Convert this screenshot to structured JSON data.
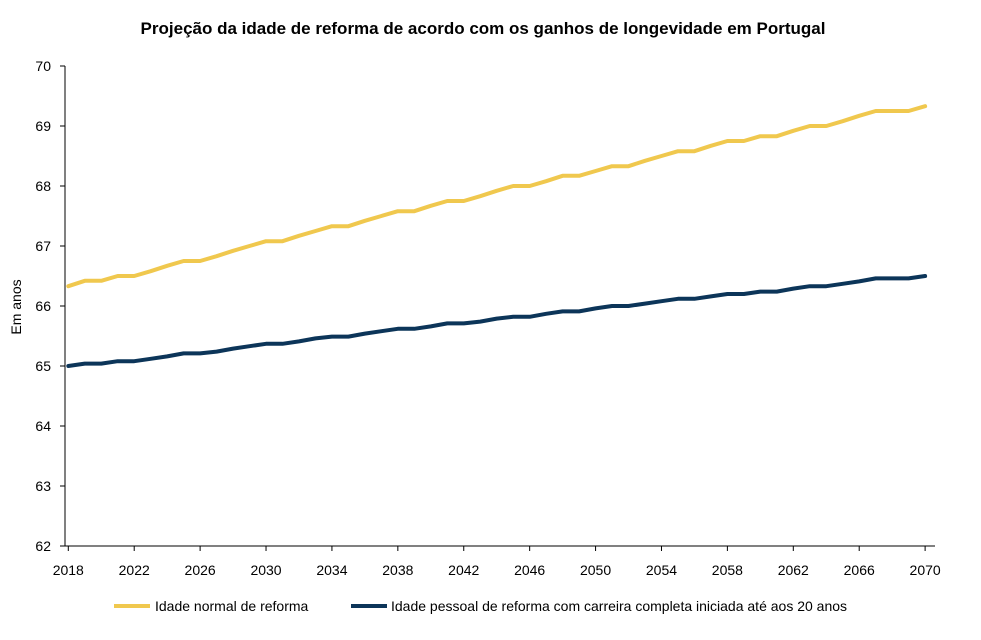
{
  "chart_data": {
    "type": "line",
    "title": "Projeção da idade de reforma de acordo com os ganhos de longevidade em Portugal",
    "xlabel": "",
    "ylabel": "Em anos",
    "ylim": [
      62,
      70
    ],
    "yticks": [
      "62",
      "63",
      "64",
      "65",
      "66",
      "67",
      "68",
      "69",
      "70"
    ],
    "xlim": [
      2017.8,
      2070.6
    ],
    "xticks": [
      "2018",
      "2022",
      "2026",
      "2030",
      "2034",
      "2038",
      "2042",
      "2046",
      "2050",
      "2054",
      "2058",
      "2062",
      "2066",
      "2070"
    ],
    "grid": false,
    "legend_position": "bottom",
    "x": [
      2018,
      2019,
      2020,
      2021,
      2022,
      2023,
      2024,
      2025,
      2026,
      2027,
      2028,
      2029,
      2030,
      2031,
      2032,
      2033,
      2034,
      2035,
      2036,
      2037,
      2038,
      2039,
      2040,
      2041,
      2042,
      2043,
      2044,
      2045,
      2046,
      2047,
      2048,
      2049,
      2050,
      2051,
      2052,
      2053,
      2054,
      2055,
      2056,
      2057,
      2058,
      2059,
      2060,
      2061,
      2062,
      2063,
      2064,
      2065,
      2066,
      2067,
      2068,
      2069,
      2070
    ],
    "series": [
      {
        "name": "Idade normal de reforma",
        "color": "#f0c84e",
        "values": [
          66.33,
          66.42,
          66.42,
          66.5,
          66.5,
          66.58,
          66.67,
          66.75,
          66.75,
          66.83,
          66.92,
          67.0,
          67.08,
          67.08,
          67.17,
          67.25,
          67.33,
          67.33,
          67.42,
          67.5,
          67.58,
          67.58,
          67.67,
          67.75,
          67.75,
          67.83,
          67.92,
          68.0,
          68.0,
          68.08,
          68.17,
          68.17,
          68.25,
          68.33,
          68.33,
          68.42,
          68.5,
          68.58,
          68.58,
          68.67,
          68.75,
          68.75,
          68.83,
          68.83,
          68.92,
          69.0,
          69.0,
          69.08,
          69.17,
          69.25,
          69.25,
          69.25,
          69.33
        ]
      },
      {
        "name": "Idade pessoal de reforma com carreira completa iniciada até aos 20 anos",
        "color": "#0c3559",
        "values": [
          65.0,
          65.04,
          65.04,
          65.08,
          65.08,
          65.12,
          65.16,
          65.21,
          65.21,
          65.24,
          65.29,
          65.33,
          65.37,
          65.37,
          65.41,
          65.46,
          65.49,
          65.49,
          65.54,
          65.58,
          65.62,
          65.62,
          65.66,
          65.71,
          65.71,
          65.74,
          65.79,
          65.82,
          65.82,
          65.87,
          65.91,
          65.91,
          65.96,
          66.0,
          66.0,
          66.04,
          66.08,
          66.12,
          66.12,
          66.16,
          66.2,
          66.2,
          66.24,
          66.24,
          66.29,
          66.33,
          66.33,
          66.37,
          66.41,
          66.46,
          66.46,
          66.46,
          66.5
        ]
      }
    ]
  }
}
